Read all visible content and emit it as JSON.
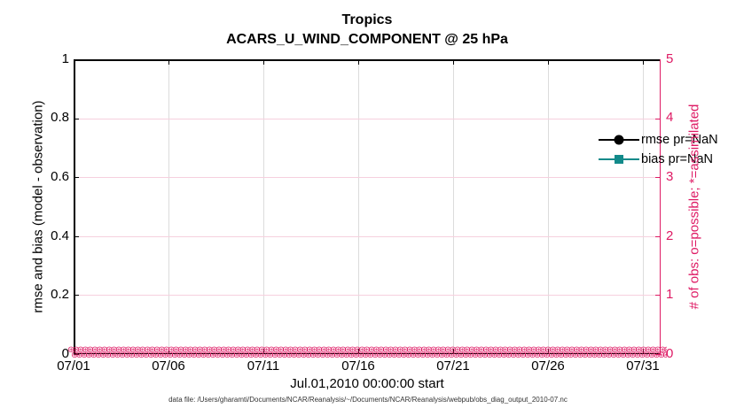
{
  "titles": {
    "line1": "Tropics",
    "line2": "ACARS_U_WIND_COMPONENT @ 25 hPa"
  },
  "axes": {
    "left": {
      "label": "rmse and bias (model - observation)",
      "ticks": [
        "0",
        "0.2",
        "0.4",
        "0.6",
        "0.8",
        "1"
      ],
      "color": "#000000"
    },
    "right": {
      "label": "# of obs: o=possible; *=assimilated",
      "ticks": [
        "0",
        "1",
        "2",
        "3",
        "4",
        "5"
      ],
      "color": "#de1a64"
    },
    "x": {
      "ticks": [
        "07/01",
        "07/06",
        "07/11",
        "07/16",
        "07/21",
        "07/26",
        "07/31"
      ],
      "label": "Jul.01,2010 00:00:00 start"
    }
  },
  "legend": {
    "items": [
      {
        "label": "rmse pr=NaN",
        "color": "#000000",
        "marker": "filled-circle"
      },
      {
        "label": "bias pr=NaN",
        "color": "#128a8a",
        "marker": "filled-square"
      }
    ]
  },
  "obs_markers": {
    "glyph": "⊛",
    "per_row": 130,
    "rows": 2,
    "meaning": "o=possible and *=assimilated observation counts, all equal to 0",
    "color": "#de1a64"
  },
  "caption": "data file: /Users/gharamti/Documents/NCAR/Reanalysis/~/Documents/NCAR/Reanalysis/webpub/obs_diag_output_2010-07.nc",
  "chart_data": {
    "type": "line",
    "title": "Tropics",
    "subtitle": "ACARS_U_WIND_COMPONENT @ 25 hPa",
    "x_axis": {
      "label": "Jul.01,2010 00:00:00 start",
      "tick_labels": [
        "07/01",
        "07/06",
        "07/11",
        "07/16",
        "07/21",
        "07/26",
        "07/31"
      ],
      "range": [
        "2010-07-01",
        "2010-08-01"
      ]
    },
    "left_axis": {
      "label": "rmse and bias (model - observation)",
      "range": [
        0,
        1
      ],
      "tick_step": 0.2
    },
    "right_axis": {
      "label": "# of obs: o=possible; *=assimilated",
      "range": [
        0,
        5
      ],
      "tick_step": 1
    },
    "series": [
      {
        "name": "rmse pr=NaN",
        "axis": "left",
        "values": "NaN at all times (nothing plotted)"
      },
      {
        "name": "bias pr=NaN",
        "axis": "left",
        "values": "NaN at all times (nothing plotted)"
      },
      {
        "name": "# of obs possible (o markers)",
        "axis": "right",
        "values": "0 at every time bin across July 2010"
      },
      {
        "name": "# of obs assimilated (* markers)",
        "axis": "right",
        "values": "0 at every time bin across July 2010"
      }
    ],
    "grid": true,
    "legend_position": "upper-right-inside"
  }
}
